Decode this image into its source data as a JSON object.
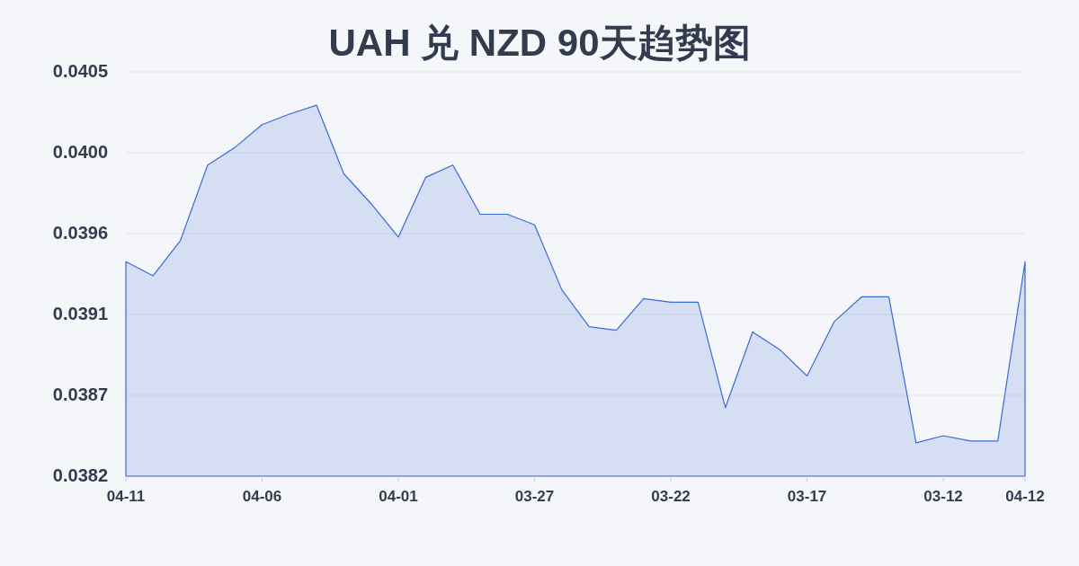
{
  "chart_data": {
    "type": "area",
    "title": "UAH 兑 NZD 90天趋势图",
    "categories": [
      "04-11",
      null,
      null,
      null,
      null,
      "04-06",
      null,
      null,
      null,
      null,
      "04-01",
      null,
      null,
      null,
      null,
      "03-27",
      null,
      null,
      null,
      null,
      "03-22",
      null,
      null,
      null,
      null,
      "03-17",
      null,
      null,
      null,
      null,
      "03-12",
      null,
      null,
      "04-12"
    ],
    "values": [
      0.03942,
      0.03934,
      0.03954,
      0.03997,
      0.04007,
      0.0402,
      0.04026,
      0.04031,
      0.03992,
      0.03975,
      0.03956,
      0.0399,
      0.03997,
      0.03969,
      0.03969,
      0.03963,
      0.03926,
      0.03905,
      0.03903,
      0.03921,
      0.03919,
      0.03919,
      0.03859,
      0.03902,
      0.03892,
      0.03877,
      0.03908,
      0.03922,
      0.03922,
      0.03839,
      0.03843,
      0.0384,
      0.0384,
      0.03942
    ],
    "color": "#3a6bd4",
    "ylim": [
      0.0382,
      0.0405
    ],
    "yticks": [
      {
        "value": 0.0382,
        "label": "0.0382"
      },
      {
        "value": 0.03866,
        "label": "0.0387"
      },
      {
        "value": 0.03912,
        "label": "0.0391"
      },
      {
        "value": 0.03958,
        "label": "0.0396"
      },
      {
        "value": 0.04004,
        "label": "0.0400"
      },
      {
        "value": 0.0405,
        "label": "0.0405"
      }
    ],
    "grid": "y"
  }
}
